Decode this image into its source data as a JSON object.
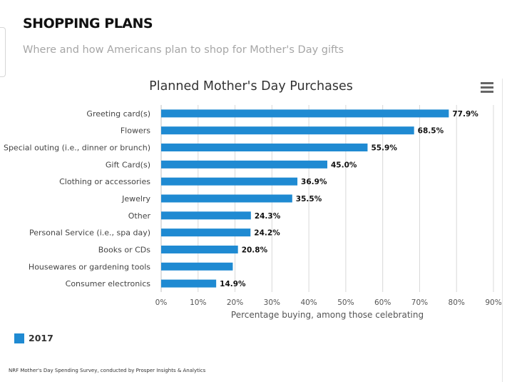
{
  "header": {
    "title": "SHOPPING PLANS",
    "subtitle": "Where and how Americans plan to shop for Mother's Day gifts"
  },
  "menu": {
    "icon": "hamburger-menu-icon"
  },
  "legend": {
    "label": "2017",
    "color": "#1f8ad2"
  },
  "footnote": "NRF Mother's Day Spending Survey, conducted by Prosper Insights & Analytics",
  "chart_data": {
    "type": "bar",
    "orientation": "horizontal",
    "title": "Planned Mother's Day Purchases",
    "xlabel": "Percentage buying, among those celebrating",
    "ylabel": "",
    "xlim": [
      0,
      90
    ],
    "x_ticks": [
      "0%",
      "10%",
      "20%",
      "30%",
      "40%",
      "50%",
      "60%",
      "70%",
      "80%",
      "90%"
    ],
    "grid": true,
    "legend_position": "bottom-left",
    "categories": [
      "Greeting card(s)",
      "Flowers",
      "Special outing (i.e., dinner or brunch)",
      "Gift Card(s)",
      "Clothing or accessories",
      "Jewelry",
      "Other",
      "Personal Service (i.e., spa day)",
      "Books or CDs",
      "Housewares or gardening tools",
      "Consumer electronics"
    ],
    "series": [
      {
        "name": "2017",
        "color": "#1f8ad2",
        "values": [
          77.9,
          68.5,
          55.9,
          45.0,
          36.9,
          35.5,
          24.3,
          24.2,
          20.8,
          19.4,
          14.9
        ],
        "data_labels": [
          "77.9%",
          "68.5%",
          "55.9%",
          "45.0%",
          "36.9%",
          "35.5%",
          "24.3%",
          "24.2%",
          "20.8%",
          "",
          "14.9%"
        ]
      }
    ]
  }
}
